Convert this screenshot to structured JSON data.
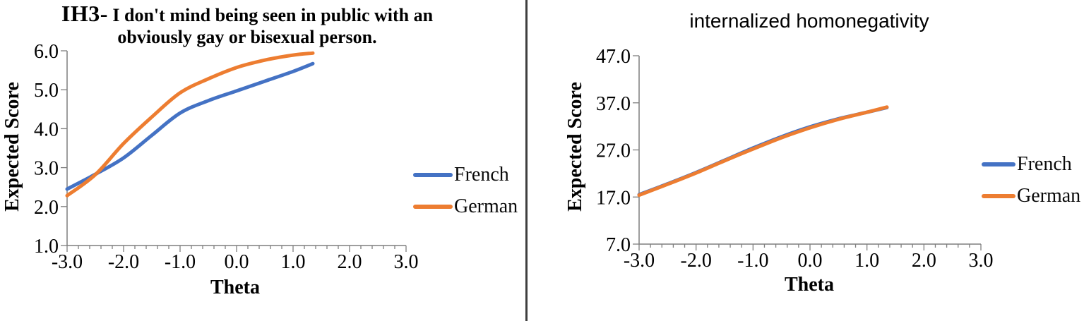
{
  "divider_color": "#3f3f3f",
  "chart_data": [
    {
      "type": "line",
      "title_prefix": "IH3-",
      "title_line1": "I don't mind being seen in public with an",
      "title_line2": "obviously gay or bisexual person.",
      "xlabel": "Theta",
      "ylabel": "Expected Score",
      "xlim": [
        -3.0,
        3.0
      ],
      "ylim": [
        1.0,
        6.0
      ],
      "x_ticks": [
        "-3.0",
        "-2.0",
        "-1.0",
        "0.0",
        "1.0",
        "2.0",
        "3.0"
      ],
      "y_ticks": [
        "1.0",
        "2.0",
        "3.0",
        "4.0",
        "5.0",
        "6.0"
      ],
      "grid": false,
      "legend_position": "right",
      "x": [
        -3.0,
        -2.5,
        -2.0,
        -1.5,
        -1.0,
        -0.5,
        0.0,
        0.5,
        1.0,
        1.35
      ],
      "series": [
        {
          "name": "French",
          "color": "#4472C4",
          "values": [
            2.45,
            2.83,
            3.25,
            3.83,
            4.4,
            4.72,
            4.97,
            5.22,
            5.47,
            5.67
          ]
        },
        {
          "name": "German",
          "color": "#ED7D31",
          "values": [
            2.28,
            2.82,
            3.62,
            4.3,
            4.92,
            5.28,
            5.57,
            5.76,
            5.89,
            5.94
          ]
        }
      ]
    },
    {
      "type": "line",
      "title": "internalized homonegativity",
      "xlabel": "Theta",
      "ylabel": "Expected Score",
      "xlim": [
        -3.0,
        3.0
      ],
      "ylim": [
        7.0,
        47.0
      ],
      "x_ticks": [
        "-3.0",
        "-2.0",
        "-1.0",
        "0.0",
        "1.0",
        "2.0",
        "3.0"
      ],
      "y_ticks": [
        "7.0",
        "17.0",
        "27.0",
        "37.0",
        "47.0"
      ],
      "grid": false,
      "legend_position": "right",
      "x": [
        -3.0,
        -2.5,
        -2.0,
        -1.5,
        -1.0,
        -0.5,
        0.0,
        0.5,
        1.0,
        1.35
      ],
      "series": [
        {
          "name": "French",
          "color": "#4472C4",
          "values": [
            17.5,
            19.8,
            22.2,
            24.8,
            27.4,
            29.8,
            31.9,
            33.6,
            35.0,
            36.0
          ]
        },
        {
          "name": "German",
          "color": "#ED7D31",
          "values": [
            17.4,
            19.7,
            22.1,
            24.7,
            27.2,
            29.6,
            31.7,
            33.5,
            35.0,
            36.1
          ]
        }
      ]
    }
  ]
}
